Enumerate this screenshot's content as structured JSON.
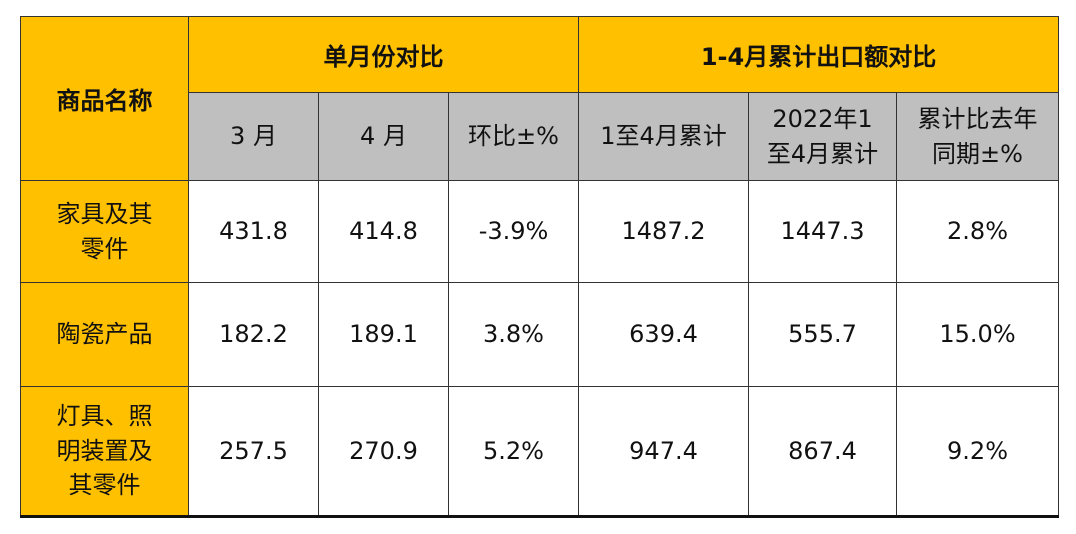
{
  "table": {
    "corner": "商品名称",
    "groups": [
      "单月份对比",
      "1-4月累计出口额对比"
    ],
    "columns": [
      "3 月",
      "4 月",
      "环比±%",
      "1至4月累计",
      "2022年1至4月累计",
      "累计比去年同期±%"
    ],
    "rows": [
      [
        "家具及其零件",
        "431.8",
        "414.8",
        "-3.9%",
        "1487.2",
        "1447.3",
        "2.8%"
      ],
      [
        "陶瓷产品",
        "182.2",
        "189.1",
        "3.8%",
        "639.4",
        "555.7",
        "15.0%"
      ],
      [
        "灯具、照明装置及其零件",
        "257.5",
        "270.9",
        "5.2%",
        "947.4",
        "867.4",
        "9.2%"
      ]
    ]
  }
}
